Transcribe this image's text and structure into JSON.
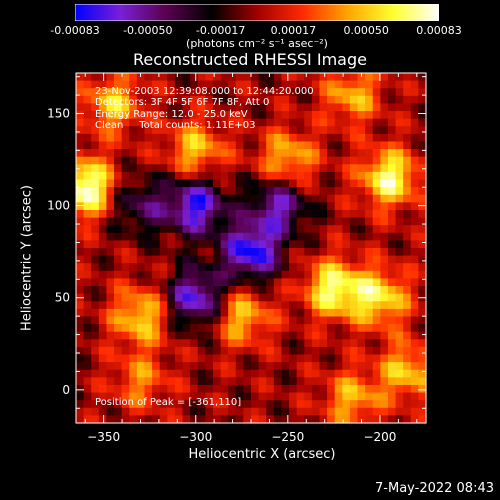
{
  "colorbar": {
    "ticks": [
      "-0.00083",
      "-0.00050",
      "-0.00017",
      "0.00017",
      "0.00050",
      "0.00083"
    ],
    "range": [
      -0.00083,
      0.00083
    ],
    "colors": [
      "#0000ff",
      "#7a1fd6",
      "#5a0050",
      "#000000",
      "#a00000",
      "#ff2a00",
      "#ffa500",
      "#ffff30",
      "#ffffff"
    ]
  },
  "units_label": "(photons cm⁻² s⁻¹ asec⁻²)",
  "title": "Reconstructed RHESSI Image",
  "info": {
    "time_range": "23-Nov-2003 12:39:08.000 to 12:44:20.000",
    "detectors": "Detectors: 3F 4F 5F 6F 7F 8F, Att 0",
    "energy": "Energy Range: 12.0 - 25.0 keV",
    "method": "Clean     Total counts: 1.11E+03"
  },
  "peak_text": "Position of Peak = [-361,110]",
  "xlabel": "Heliocentric X (arcsec)",
  "ylabel": "Heliocentric Y (arcsec)",
  "timestamp": "7-May-2022 08:43",
  "chart_data": {
    "type": "heatmap",
    "title": "Reconstructed RHESSI Image",
    "xlabel": "Heliocentric X (arcsec)",
    "ylabel": "Heliocentric Y (arcsec)",
    "xlim": [
      -365,
      -175
    ],
    "ylim": [
      -18,
      172
    ],
    "xticks": [
      -350,
      -300,
      -250,
      -200
    ],
    "yticks": [
      0,
      50,
      100,
      150
    ],
    "peak": [
      -361,
      110
    ],
    "value_range": [
      -0.00083,
      0.00083
    ],
    "hot_spots": [
      {
        "x": -360,
        "y": 110,
        "v": 0.00083
      },
      {
        "x": -195,
        "y": 115,
        "v": 0.0007
      },
      {
        "x": -225,
        "y": 55,
        "v": 0.0007
      },
      {
        "x": -200,
        "y": 50,
        "v": 0.0006
      },
      {
        "x": -330,
        "y": 40,
        "v": 0.00055
      },
      {
        "x": -275,
        "y": 40,
        "v": 0.0005
      },
      {
        "x": -300,
        "y": 130,
        "v": 0.0005
      },
      {
        "x": -250,
        "y": 125,
        "v": 0.0005
      },
      {
        "x": -345,
        "y": 155,
        "v": 0.0005
      },
      {
        "x": -215,
        "y": 160,
        "v": 0.00045
      },
      {
        "x": -185,
        "y": 10,
        "v": 0.0005
      },
      {
        "x": -215,
        "y": -5,
        "v": 0.00045
      },
      {
        "x": -330,
        "y": 5,
        "v": 0.00035
      }
    ],
    "cold_spots": [
      {
        "x": -300,
        "y": 100,
        "v": -0.00075
      },
      {
        "x": -270,
        "y": 75,
        "v": -0.0008
      },
      {
        "x": -300,
        "y": 50,
        "v": -0.0007
      },
      {
        "x": -255,
        "y": 100,
        "v": -0.0006
      },
      {
        "x": -330,
        "y": 100,
        "v": -0.0004
      }
    ]
  }
}
